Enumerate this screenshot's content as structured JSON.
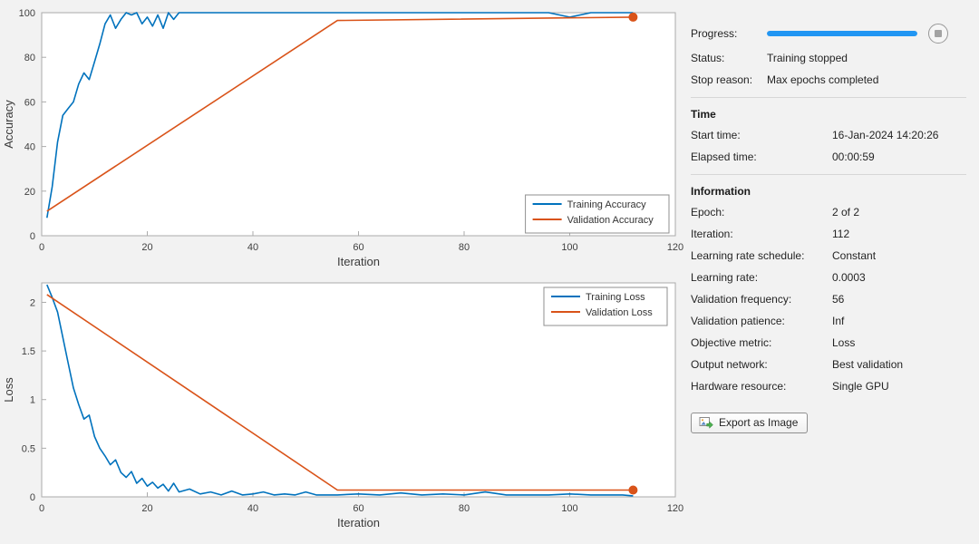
{
  "colors": {
    "training_line": "#0072bd",
    "validation_line": "#d95319",
    "progress_bar": "#2196f3",
    "plot_background": "#ffffff",
    "figure_background": "#f2f2f2"
  },
  "chart_data": [
    {
      "type": "line",
      "title": "",
      "xlabel": "Iteration",
      "ylabel": "Accuracy",
      "xlim": [
        0,
        120
      ],
      "ylim": [
        0,
        100
      ],
      "xticks": [
        0,
        20,
        40,
        60,
        80,
        100,
        120
      ],
      "yticks": [
        0,
        20,
        40,
        60,
        80,
        100
      ],
      "grid": false,
      "legend_position": "southeast",
      "series": [
        {
          "name": "Training Accuracy",
          "color": "#0072bd",
          "x": [
            1,
            2,
            3,
            4,
            5,
            6,
            7,
            8,
            9,
            10,
            11,
            12,
            13,
            14,
            15,
            16,
            17,
            18,
            19,
            20,
            21,
            22,
            23,
            24,
            25,
            26,
            28,
            30,
            32,
            34,
            36,
            38,
            40,
            42,
            44,
            46,
            48,
            50,
            52,
            54,
            56,
            60,
            64,
            68,
            72,
            76,
            80,
            84,
            88,
            92,
            96,
            100,
            104,
            108,
            110,
            112
          ],
          "y": [
            8,
            22,
            42,
            54,
            57,
            60,
            68,
            73,
            70,
            78,
            86,
            95,
            99,
            93,
            97,
            100,
            99,
            100,
            95,
            98,
            94,
            99,
            93,
            100,
            97,
            100,
            100,
            100,
            100,
            100,
            100,
            100,
            100,
            100,
            100,
            100,
            100,
            100,
            100,
            100,
            100,
            100,
            100,
            100,
            100,
            100,
            100,
            100,
            100,
            100,
            100,
            98,
            100,
            100,
            100,
            100
          ]
        },
        {
          "name": "Validation Accuracy",
          "color": "#d95319",
          "x": [
            1,
            56,
            112
          ],
          "y": [
            11,
            96.5,
            98
          ]
        }
      ],
      "final_marker": {
        "x": 112,
        "y": 98,
        "color": "#d95319"
      }
    },
    {
      "type": "line",
      "title": "",
      "xlabel": "Iteration",
      "ylabel": "Loss",
      "xlim": [
        0,
        120
      ],
      "ylim": [
        0,
        2.2
      ],
      "xticks": [
        0,
        20,
        40,
        60,
        80,
        100,
        120
      ],
      "yticks": [
        0,
        0.5,
        1,
        1.5,
        2
      ],
      "grid": false,
      "legend_position": "northeast",
      "series": [
        {
          "name": "Training Loss",
          "color": "#0072bd",
          "x": [
            1,
            2,
            3,
            4,
            5,
            6,
            7,
            8,
            9,
            10,
            11,
            12,
            13,
            14,
            15,
            16,
            17,
            18,
            19,
            20,
            21,
            22,
            23,
            24,
            25,
            26,
            28,
            30,
            32,
            34,
            36,
            38,
            40,
            42,
            44,
            46,
            48,
            50,
            52,
            54,
            56,
            60,
            64,
            68,
            72,
            76,
            80,
            84,
            88,
            92,
            96,
            100,
            104,
            108,
            110,
            112
          ],
          "y": [
            2.18,
            2.05,
            1.9,
            1.64,
            1.38,
            1.12,
            0.95,
            0.8,
            0.84,
            0.62,
            0.5,
            0.42,
            0.33,
            0.38,
            0.25,
            0.2,
            0.26,
            0.14,
            0.19,
            0.11,
            0.15,
            0.09,
            0.13,
            0.06,
            0.14,
            0.05,
            0.08,
            0.03,
            0.05,
            0.02,
            0.06,
            0.02,
            0.03,
            0.05,
            0.02,
            0.03,
            0.02,
            0.05,
            0.02,
            0.02,
            0.02,
            0.03,
            0.02,
            0.04,
            0.02,
            0.03,
            0.02,
            0.05,
            0.02,
            0.02,
            0.02,
            0.03,
            0.02,
            0.02,
            0.02,
            0.01
          ]
        },
        {
          "name": "Validation Loss",
          "color": "#d95319",
          "x": [
            1,
            56,
            112
          ],
          "y": [
            2.08,
            0.07,
            0.07
          ]
        }
      ],
      "final_marker": {
        "x": 112,
        "y": 0.07,
        "color": "#d95319"
      }
    }
  ],
  "panel": {
    "progress": {
      "label": "Progress:",
      "percent": 100
    },
    "status": {
      "label": "Status:",
      "value": "Training stopped"
    },
    "stop_reason": {
      "label": "Stop reason:",
      "value": "Max epochs completed"
    },
    "time": {
      "header": "Time",
      "start": {
        "label": "Start time:",
        "value": "16-Jan-2024 14:20:26"
      },
      "elapsed": {
        "label": "Elapsed time:",
        "value": "00:00:59"
      }
    },
    "information": {
      "header": "Information",
      "rows": [
        {
          "label": "Epoch:",
          "value": "2 of 2"
        },
        {
          "label": "Iteration:",
          "value": "112"
        },
        {
          "label": "Learning rate schedule:",
          "value": "Constant"
        },
        {
          "label": "Learning rate:",
          "value": "0.0003"
        },
        {
          "label": "Validation frequency:",
          "value": "56"
        },
        {
          "label": "Validation patience:",
          "value": "Inf"
        },
        {
          "label": "Objective metric:",
          "value": "Loss"
        },
        {
          "label": "Output network:",
          "value": "Best validation"
        },
        {
          "label": "Hardware resource:",
          "value": "Single GPU"
        }
      ]
    },
    "export_button": "Export as Image",
    "icons": {
      "stop": "stop-icon",
      "export": "export-image-icon"
    }
  }
}
